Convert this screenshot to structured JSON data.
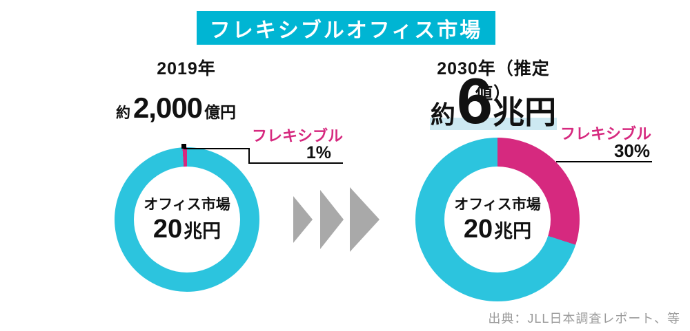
{
  "colors": {
    "banner": "#00b5d3",
    "donut_cyan": "#2cc4de",
    "magenta": "#d6297f",
    "highlight": "#cde9f2",
    "arrow": "#a9a9a9",
    "source": "#9a9a9a"
  },
  "header": {
    "title": "フレキシブルオフィス市場"
  },
  "left_chart": {
    "year": "2019年",
    "amount": {
      "prefix": "約",
      "value": "2,000",
      "unit": "億円"
    },
    "callout": {
      "label": "フレキシブル",
      "value": "1%"
    },
    "center": {
      "line1": "オフィス市場",
      "value": "20",
      "unit": "兆円"
    }
  },
  "right_chart": {
    "year": "2030年（推定値）",
    "amount": {
      "prefix": "約",
      "value": "6",
      "unit": "兆円"
    },
    "callout": {
      "label": "フレキシブル",
      "value": "30%"
    },
    "center": {
      "line1": "オフィス市場",
      "value": "20",
      "unit": "兆円"
    }
  },
  "source": "出典：JLL日本調査レポート、等",
  "chart_data": [
    {
      "type": "pie",
      "title": "2019年",
      "total_label": "約2,000億円",
      "donut": true,
      "legend_position": "none",
      "slices": [
        {
          "label": "フレキシブル",
          "percent": 1,
          "color_key": "magenta",
          "start_deg": 356.4,
          "end_deg": 360
        },
        {
          "label": "オフィス市場 20兆円",
          "percent": 99,
          "color_key": "donut_cyan"
        }
      ]
    },
    {
      "type": "pie",
      "title": "2030年（推定値）",
      "total_label": "約6兆円",
      "donut": true,
      "legend_position": "none",
      "slices": [
        {
          "label": "フレキシブル",
          "percent": 30,
          "color_key": "magenta",
          "start_deg": 0,
          "end_deg": 108
        },
        {
          "label": "オフィス市場 20兆円",
          "percent": 70,
          "color_key": "donut_cyan"
        }
      ]
    }
  ]
}
